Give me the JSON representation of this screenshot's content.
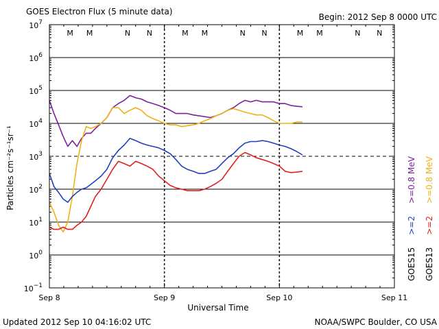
{
  "header": {
    "title": "GOES Electron Flux (5 minute data)",
    "begin": "Begin: 2012 Sep 8 0000 UTC"
  },
  "footer": {
    "updated": "Updated 2012 Sep 10 04:16:02 UTC",
    "source": "NOAA/SWPC Boulder, CO USA"
  },
  "chart_data": {
    "type": "line",
    "title": "GOES Electron Flux (5 minute data)",
    "xlabel": "Universal Time",
    "ylabel": "Particles cm⁻²s⁻¹sr⁻¹",
    "y_scale": "log",
    "ylim": [
      0.1,
      10000000
    ],
    "y_tick_base": "10",
    "y_tick_exponents": [
      "7",
      "6",
      "5",
      "4",
      "3",
      "2",
      "1",
      "0",
      "−1"
    ],
    "xlim_days": [
      0,
      3
    ],
    "x_tick_labels": [
      "Sep 8",
      "Sep 9",
      "Sep 10",
      "Sep 11"
    ],
    "grid": true,
    "threshold_line": 1000,
    "legend": {
      "placement": "right",
      "groups": [
        {
          "label": "GOES15",
          "entries": [
            {
              "label": ">=2",
              "color": "#1f3fbf"
            },
            {
              "label": ">=0.8 MeV",
              "color": "#7a1fa0"
            }
          ]
        },
        {
          "label": "GOES13",
          "entries": [
            {
              "label": ">=2",
              "color": "#e02020"
            },
            {
              "label": ">=0.8 MeV",
              "color": "#f0b010"
            }
          ]
        }
      ]
    },
    "markers": [
      {
        "label": "M",
        "day": 0.18,
        "color": "#cc2020"
      },
      {
        "label": "M",
        "day": 0.35,
        "color": "#1f3fbf"
      },
      {
        "label": "N",
        "day": 0.68,
        "color": "#cc2020"
      },
      {
        "label": "N",
        "day": 0.87,
        "color": "#1f3fbf"
      },
      {
        "label": "M",
        "day": 1.18,
        "color": "#cc2020"
      },
      {
        "label": "M",
        "day": 1.35,
        "color": "#1f3fbf"
      },
      {
        "label": "N",
        "day": 1.68,
        "color": "#cc2020"
      },
      {
        "label": "N",
        "day": 1.87,
        "color": "#1f3fbf"
      },
      {
        "label": "M",
        "day": 2.18,
        "color": "#cc2020"
      },
      {
        "label": "M",
        "day": 2.35,
        "color": "#1f3fbf"
      },
      {
        "label": "N",
        "day": 2.68,
        "color": "#cc2020"
      },
      {
        "label": "N",
        "day": 2.87,
        "color": "#1f3fbf"
      }
    ],
    "series": [
      {
        "name": "GOES15 >=0.8 MeV",
        "color": "#7a1fa0",
        "x": [
          0.0,
          0.04,
          0.08,
          0.12,
          0.16,
          0.2,
          0.24,
          0.28,
          0.32,
          0.36,
          0.4,
          0.45,
          0.5,
          0.55,
          0.6,
          0.65,
          0.7,
          0.75,
          0.8,
          0.85,
          0.9,
          0.95,
          1.0,
          1.05,
          1.1,
          1.15,
          1.2,
          1.25,
          1.3,
          1.35,
          1.4,
          1.45,
          1.5,
          1.55,
          1.6,
          1.65,
          1.7,
          1.75,
          1.8,
          1.85,
          1.9,
          1.95,
          2.0,
          2.05,
          2.1,
          2.15,
          2.2
        ],
        "y": [
          50000,
          20000,
          9000,
          4000,
          2000,
          3000,
          2000,
          3500,
          5000,
          5000,
          7000,
          10000,
          15000,
          30000,
          40000,
          50000,
          70000,
          60000,
          55000,
          45000,
          40000,
          35000,
          30000,
          25000,
          20000,
          20000,
          20000,
          18000,
          17000,
          16000,
          15000,
          17000,
          20000,
          25000,
          30000,
          40000,
          50000,
          45000,
          50000,
          45000,
          45000,
          45000,
          40000,
          40000,
          35000,
          33000,
          32000
        ]
      },
      {
        "name": "GOES13 >=0.8 MeV",
        "color": "#f0b010",
        "x": [
          0.0,
          0.04,
          0.08,
          0.12,
          0.16,
          0.2,
          0.24,
          0.28,
          0.32,
          0.36,
          0.4,
          0.45,
          0.5,
          0.55,
          0.6,
          0.65,
          0.7,
          0.75,
          0.8,
          0.85,
          0.9,
          0.95,
          1.0,
          1.05,
          1.1,
          1.15,
          1.2,
          1.25,
          1.3,
          1.35,
          1.4,
          1.45,
          1.5,
          1.55,
          1.6,
          1.65,
          1.7,
          1.75,
          1.8,
          1.85,
          1.9,
          1.95,
          2.0,
          2.05,
          2.1,
          2.15,
          2.2
        ],
        "y": [
          40,
          20,
          8,
          5,
          10,
          60,
          600,
          3000,
          8000,
          7000,
          8000,
          10000,
          15000,
          30000,
          30000,
          20000,
          25000,
          30000,
          25000,
          17000,
          14000,
          12000,
          10000,
          9000,
          9000,
          8000,
          8500,
          9000,
          10000,
          12000,
          14000,
          17000,
          20000,
          25000,
          28000,
          25000,
          22000,
          20000,
          18000,
          18000,
          15000,
          12000,
          10000,
          10000,
          10000,
          11000,
          11000
        ]
      },
      {
        "name": "GOES15 >=2",
        "color": "#1f3fbf",
        "x": [
          0.0,
          0.04,
          0.08,
          0.12,
          0.16,
          0.2,
          0.24,
          0.28,
          0.32,
          0.36,
          0.4,
          0.45,
          0.5,
          0.55,
          0.6,
          0.65,
          0.7,
          0.75,
          0.8,
          0.85,
          0.9,
          0.95,
          1.0,
          1.05,
          1.1,
          1.15,
          1.2,
          1.25,
          1.3,
          1.35,
          1.4,
          1.45,
          1.5,
          1.55,
          1.6,
          1.65,
          1.7,
          1.75,
          1.8,
          1.85,
          1.9,
          1.95,
          2.0,
          2.05,
          2.1,
          2.15,
          2.2
        ],
        "y": [
          300,
          120,
          80,
          50,
          40,
          60,
          80,
          100,
          110,
          140,
          180,
          250,
          400,
          900,
          1500,
          2200,
          3500,
          3000,
          2500,
          2200,
          2000,
          1800,
          1500,
          1200,
          800,
          500,
          400,
          350,
          300,
          300,
          350,
          400,
          600,
          900,
          1200,
          1800,
          2500,
          2800,
          2800,
          3000,
          2800,
          2500,
          2200,
          2000,
          1700,
          1400,
          1100
        ]
      },
      {
        "name": "GOES13 >=2",
        "color": "#e02020",
        "x": [
          0.0,
          0.04,
          0.08,
          0.12,
          0.16,
          0.2,
          0.24,
          0.28,
          0.32,
          0.36,
          0.4,
          0.45,
          0.5,
          0.55,
          0.6,
          0.65,
          0.7,
          0.75,
          0.8,
          0.85,
          0.9,
          0.95,
          1.0,
          1.05,
          1.1,
          1.15,
          1.2,
          1.25,
          1.3,
          1.35,
          1.4,
          1.45,
          1.5,
          1.55,
          1.6,
          1.65,
          1.7,
          1.75,
          1.8,
          1.85,
          1.9,
          1.95,
          2.0,
          2.05,
          2.1,
          2.15,
          2.2
        ],
        "y": [
          7,
          6,
          6,
          7,
          6,
          6,
          8,
          10,
          15,
          30,
          60,
          100,
          200,
          400,
          700,
          600,
          500,
          700,
          600,
          500,
          400,
          250,
          180,
          130,
          110,
          100,
          90,
          90,
          90,
          100,
          120,
          150,
          200,
          350,
          600,
          1000,
          1300,
          1100,
          900,
          800,
          700,
          600,
          500,
          350,
          320,
          330,
          350
        ]
      }
    ]
  }
}
